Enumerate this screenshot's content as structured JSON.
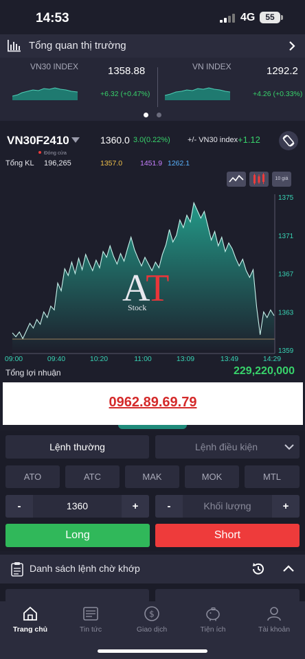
{
  "status_bar": {
    "time": "14:53",
    "network": "4G",
    "battery": "55"
  },
  "overview": {
    "title": "Tổng quan thị trường"
  },
  "indices": [
    {
      "name": "VN30 INDEX",
      "price": "1358.88",
      "change": "+6.32 (+0.47%)"
    },
    {
      "name": "VN INDEX",
      "price": "1292.2",
      "change": "+4.26 (+0.33%)"
    }
  ],
  "contract": {
    "name": "VN30F2410",
    "status": "Đóng cửa",
    "price": "1360.0",
    "change": "3.0(0.22%)",
    "basis_label": "+/- VN30 index",
    "basis_value": "+1.12",
    "volume_label": "Tổng KL",
    "volume_value": "196,265",
    "price_a": "1357.0",
    "price_b": "1451.9",
    "price_c": "1262.1"
  },
  "chart_buttons": {
    "ten_price": "10 giá"
  },
  "chart_data": {
    "type": "area",
    "x_ticks": [
      "09:00",
      "09:40",
      "10:20",
      "11:00",
      "13:09",
      "13:49",
      "14:29"
    ],
    "y_ticks": [
      "1375",
      "1371",
      "1367",
      "1363",
      "1359"
    ],
    "ylim": [
      1359,
      1375
    ],
    "series": [
      {
        "values": [
          1360.8,
          1360.4,
          1360.9,
          1360.2,
          1361.0,
          1361.8,
          1361.3,
          1362.2,
          1361.7,
          1363.0,
          1362.4,
          1363.6,
          1363.2,
          1366.0,
          1365.2,
          1367.5,
          1366.8,
          1368.2,
          1367.0,
          1368.6,
          1367.4,
          1369.0,
          1368.1,
          1367.3,
          1368.4,
          1367.6,
          1369.3,
          1368.7,
          1369.9,
          1368.8,
          1368.0,
          1369.1,
          1368.3,
          1369.6,
          1370.8,
          1369.5,
          1368.6,
          1367.8,
          1368.7,
          1368.0,
          1367.3,
          1368.2,
          1367.6,
          1369.0,
          1370.0,
          1371.6,
          1370.3,
          1371.0,
          1372.6,
          1371.8,
          1373.1,
          1372.4,
          1374.4,
          1373.6,
          1372.8,
          1373.5,
          1372.0,
          1370.5,
          1371.4,
          1369.9,
          1370.8,
          1369.3,
          1370.2,
          1369.6,
          1368.6,
          1367.8,
          1368.5,
          1367.3,
          1366.6,
          1367.4,
          1363.5,
          1360.6,
          1363.0,
          1362.4,
          1363.2,
          1362.6
        ]
      }
    ],
    "watermark": "AT",
    "watermark_sub": "Stock"
  },
  "profit": {
    "label": "Tổng lợi nhuận",
    "value": "229,220,000"
  },
  "banner": {
    "phone": "0962.89.69.79"
  },
  "order": {
    "tabs": [
      "Lệnh thường",
      "Lệnh điều kiện"
    ],
    "types": [
      "ATO",
      "ATC",
      "MAK",
      "MOK",
      "MTL"
    ],
    "price_value": "1360",
    "volume_placeholder": "Khối lượng",
    "minus": "-",
    "plus": "+",
    "long": "Long",
    "short": "Short"
  },
  "pending": {
    "title": "Danh sách lệnh chờ khớp"
  },
  "nav": [
    {
      "label": "Trang chủ",
      "icon": "home-icon"
    },
    {
      "label": "Tin tức",
      "icon": "news-icon"
    },
    {
      "label": "Giao dịch",
      "icon": "trade-icon"
    },
    {
      "label": "Tiện ích",
      "icon": "utility-icon"
    },
    {
      "label": "Tài khoản",
      "icon": "account-icon"
    }
  ],
  "colors": {
    "up": "#38d36b",
    "down": "#ee3b3b",
    "teal": "#1f8a7a"
  }
}
